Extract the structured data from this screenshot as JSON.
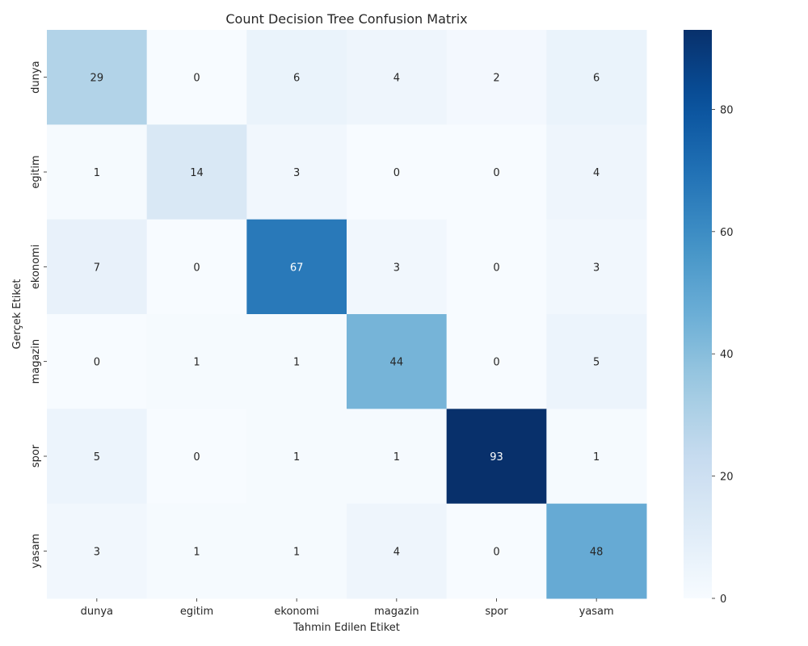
{
  "chart_data": {
    "type": "heatmap",
    "title": "Count Decision Tree Confusion Matrix",
    "xlabel": "Tahmin Edilen Etiket",
    "ylabel": "Gerçek Etiket",
    "x_categories": [
      "dunya",
      "egitim",
      "ekonomi",
      "magazin",
      "spor",
      "yasam"
    ],
    "y_categories": [
      "dunya",
      "egitim",
      "ekonomi",
      "magazin",
      "spor",
      "yasam"
    ],
    "values": [
      [
        29,
        0,
        6,
        4,
        2,
        6
      ],
      [
        1,
        14,
        3,
        0,
        0,
        4
      ],
      [
        7,
        0,
        67,
        3,
        0,
        3
      ],
      [
        0,
        1,
        1,
        44,
        0,
        5
      ],
      [
        5,
        0,
        1,
        1,
        93,
        1
      ],
      [
        3,
        1,
        1,
        4,
        0,
        48
      ]
    ],
    "colormap": "Blues",
    "vmin": 0,
    "vmax": 93,
    "colorbar_ticks": [
      0,
      20,
      40,
      60,
      80
    ]
  }
}
